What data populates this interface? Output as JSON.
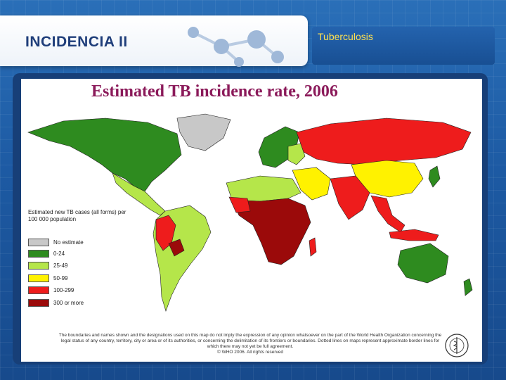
{
  "slide": {
    "title": "INCIDENCIA II",
    "topic": "Tuberculosis"
  },
  "map": {
    "title": "Estimated TB incidence rate, 2006",
    "legend_title": "Estimated new TB cases (all forms) per 100 000 population",
    "legend": [
      {
        "label": "No estimate",
        "color": "#c8c8c8"
      },
      {
        "label": "0-24",
        "color": "#2e8b1f"
      },
      {
        "label": "25-49",
        "color": "#b5e64a"
      },
      {
        "label": "50-99",
        "color": "#fff200"
      },
      {
        "label": "100-299",
        "color": "#ee1c1c"
      },
      {
        "label": "300 or more",
        "color": "#9b0a0a"
      }
    ],
    "disclaimer": "The boundaries and names shown and the designations used on this map do not imply the expression of any opinion whatsoever on the part of the World Health Organization concerning the legal status of any country, territory, city or area or of its authorities, or concerning the delimitation of its frontiers or boundaries. Dotted lines on maps represent approximate border lines for which there may not yet be full agreement.",
    "copyright": "© WHO 2006. All rights reserved",
    "ocean_color": "#ffffff"
  }
}
